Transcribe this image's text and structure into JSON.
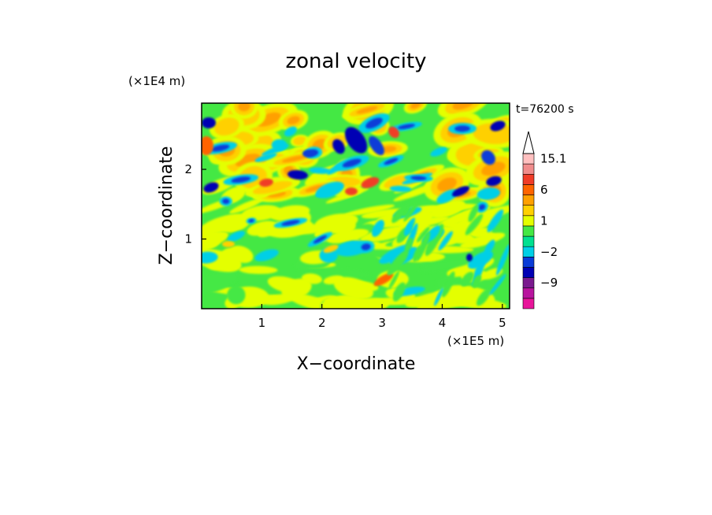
{
  "chart_data": {
    "type": "heatmap",
    "title": "zonal velocity",
    "xlabel": "X−coordinate",
    "ylabel": "Z−coordinate",
    "x_unit": "(×1E5 m)",
    "y_unit": "(×1E4 m)",
    "time_label": "t=76200 s",
    "xlim": [
      0,
      5.12
    ],
    "ylim": [
      0,
      2.95
    ],
    "x_ticks": [
      1,
      2,
      3,
      4,
      5
    ],
    "y_ticks": [
      1,
      2
    ],
    "colorbar": {
      "levels": [
        -15,
        -12,
        -9,
        -6,
        -3,
        -2,
        -1,
        0,
        1,
        2,
        3,
        6,
        9,
        12,
        15.1
      ],
      "labeled_values": [
        "15.1",
        "6",
        "1",
        "−2",
        "−9"
      ],
      "colors": [
        "#e8149a",
        "#b8149e",
        "#7a1a8e",
        "#0000b4",
        "#0a3cd8",
        "#00cfe6",
        "#00e090",
        "#44e844",
        "#e4ff00",
        "#ffd000",
        "#ffa000",
        "#ff6400",
        "#f03c28",
        "#f08c8c",
        "#ffc0c0"
      ],
      "extend_top": true
    },
    "field_description_visible": "zonal velocity contour fill over X (0–5.12×1E5 m) and Z (0–2.95×1E4 m)"
  }
}
